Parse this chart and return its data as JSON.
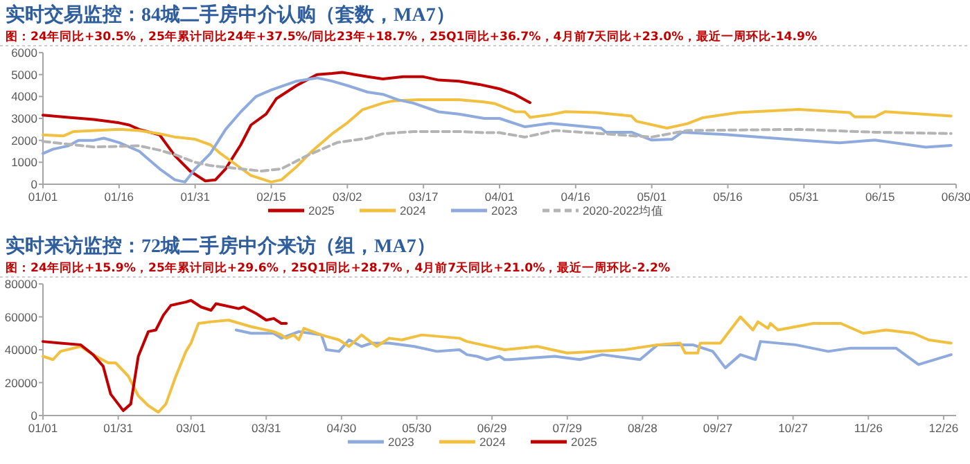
{
  "chart_data": [
    {
      "type": "line",
      "title": "实时交易监控：84城二手房中介认购（套数，MA7）",
      "subtitle": "图：24年同比+30.5%，25年累计同比24年+37.5%/同比23年+18.7%，25Q1同比+36.7%，4月前7天同比+23.0%，最近一周环比-14.9%",
      "xlim": [
        "--01-01",
        "--06-30"
      ],
      "xticks": [
        {
          "value": "--01-01",
          "label": "01/01"
        },
        {
          "value": "--01-16",
          "label": "01/16"
        },
        {
          "value": "--01-31",
          "label": "01/31"
        },
        {
          "value": "--02-15",
          "label": "02/15"
        },
        {
          "value": "--03-02",
          "label": "03/02"
        },
        {
          "value": "--03-17",
          "label": "03/17"
        },
        {
          "value": "--04-01",
          "label": "04/01"
        },
        {
          "value": "--04-16",
          "label": "04/16"
        },
        {
          "value": "--05-01",
          "label": "05/01"
        },
        {
          "value": "--05-16",
          "label": "05/16"
        },
        {
          "value": "--05-31",
          "label": "05/31"
        },
        {
          "value": "--06-15",
          "label": "06/15"
        },
        {
          "value": "--06-30",
          "label": "06/30"
        }
      ],
      "ylim": [
        0,
        6000
      ],
      "yticks": [
        0,
        1000,
        2000,
        3000,
        4000,
        5000,
        6000
      ],
      "legend": "bottom",
      "series": [
        {
          "name": "2025",
          "color": "#c00000",
          "x": [
            "--01-01",
            "--01-06",
            "--01-11",
            "--01-16",
            "--01-18",
            "--01-20",
            "--01-24",
            "--01-27",
            "--01-30",
            "--02-02",
            "--02-04",
            "--02-06",
            "--02-09",
            "--02-11",
            "--02-14",
            "--02-16",
            "--02-20",
            "--02-24",
            "--02-27",
            "--03-01",
            "--03-06",
            "--03-09",
            "--03-13",
            "--03-17",
            "--03-20",
            "--03-24",
            "--03-28",
            "--04-01",
            "--04-04",
            "--04-07"
          ],
          "values": [
            3150,
            3050,
            2950,
            2800,
            2700,
            2500,
            2250,
            1300,
            600,
            150,
            200,
            700,
            1800,
            2700,
            3200,
            3900,
            4500,
            5000,
            5050,
            5100,
            4900,
            4800,
            4900,
            4900,
            4750,
            4700,
            4550,
            4350,
            4100,
            3720
          ]
        },
        {
          "name": "2024",
          "color": "#f2c040",
          "x": [
            "--01-01",
            "--01-05",
            "--01-07",
            "--01-16",
            "--01-20",
            "--01-24",
            "--01-27",
            "--01-31",
            "--02-03",
            "--02-05",
            "--02-08",
            "--02-11",
            "--02-15",
            "--02-17",
            "--02-20",
            "--02-23",
            "--02-27",
            "--03-02",
            "--03-05",
            "--03-09",
            "--03-11",
            "--03-16",
            "--03-24",
            "--03-29",
            "--03-31",
            "--04-04",
            "--04-06",
            "--04-07",
            "--04-11",
            "--04-14",
            "--04-20",
            "--04-27",
            "--04-28",
            "--05-04",
            "--05-08",
            "--05-11",
            "--05-18",
            "--05-30",
            "--06-09",
            "--06-10",
            "--06-14",
            "--06-16",
            "--06-29"
          ],
          "values": [
            2250,
            2200,
            2400,
            2500,
            2450,
            2300,
            2150,
            2050,
            1800,
            1400,
            900,
            400,
            100,
            200,
            800,
            1500,
            2300,
            2800,
            3400,
            3700,
            3800,
            3850,
            3850,
            3750,
            3680,
            3310,
            3300,
            3050,
            3170,
            3310,
            3270,
            3110,
            2870,
            2560,
            2760,
            3030,
            3270,
            3410,
            3270,
            3070,
            3070,
            3310,
            3110
          ]
        },
        {
          "name": "2023",
          "color": "#8faadc",
          "x": [
            "--01-01",
            "--01-03",
            "--01-06",
            "--01-08",
            "--01-11",
            "--01-13",
            "--01-16",
            "--01-20",
            "--01-22",
            "--01-24",
            "--01-27",
            "--01-29",
            "--01-31",
            "--02-03",
            "--02-06",
            "--02-09",
            "--02-12",
            "--02-15",
            "--02-20",
            "--02-24",
            "--02-27",
            "--03-02",
            "--03-06",
            "--03-09",
            "--03-12",
            "--03-15",
            "--03-20",
            "--03-24",
            "--03-29",
            "--04-01",
            "--04-06",
            "--04-11",
            "--04-21",
            "--04-22",
            "--04-27",
            "--05-01",
            "--05-05",
            "--05-07",
            "--05-15",
            "--05-30",
            "--06-07",
            "--06-14",
            "--06-24",
            "--06-29"
          ],
          "values": [
            1400,
            1600,
            1750,
            2000,
            2000,
            2100,
            1900,
            1500,
            1100,
            700,
            200,
            100,
            700,
            1400,
            2500,
            3300,
            4000,
            4300,
            4700,
            4850,
            4700,
            4500,
            4200,
            4100,
            3850,
            3700,
            3300,
            3200,
            3000,
            3000,
            2620,
            2780,
            2560,
            2370,
            2370,
            2010,
            2050,
            2370,
            2270,
            2010,
            1890,
            2010,
            1690,
            1770
          ]
        },
        {
          "name": "2020-2022均值",
          "color": "#b4b4b4",
          "line_style": "dashed",
          "x": [
            "--01-01",
            "--01-11",
            "--01-20",
            "--01-24",
            "--01-27",
            "--01-31",
            "--02-03",
            "--02-07",
            "--02-13",
            "--02-17",
            "--02-22",
            "--02-28",
            "--03-06",
            "--03-09",
            "--03-15",
            "--03-24",
            "--03-29",
            "--04-01",
            "--04-06",
            "--04-12",
            "--05-01",
            "--05-08",
            "--05-30",
            "--06-14",
            "--06-29"
          ],
          "values": [
            1950,
            1700,
            1750,
            1550,
            1350,
            1000,
            850,
            750,
            600,
            700,
            1300,
            1900,
            2100,
            2300,
            2400,
            2400,
            2350,
            2350,
            2150,
            2450,
            2150,
            2450,
            2500,
            2370,
            2310
          ]
        }
      ]
    },
    {
      "type": "line",
      "title": "实时来访监控：72城二手房中介来访（组，MA7）",
      "subtitle": "图：24年同比+15.9%，25年累计同比+29.6%，25Q1同比+28.7%，4月前7天同比+21.0%，最近一周环比-2.2%",
      "xlim": [
        "--01-01",
        "--12-31"
      ],
      "xticks": [
        {
          "value": "--01-01",
          "label": "01/01"
        },
        {
          "value": "--01-31",
          "label": "01/31"
        },
        {
          "value": "--03-01",
          "label": "03/01"
        },
        {
          "value": "--03-31",
          "label": "03/31"
        },
        {
          "value": "--04-30",
          "label": "04/30"
        },
        {
          "value": "--05-30",
          "label": "05/30"
        },
        {
          "value": "--06-29",
          "label": "06/29"
        },
        {
          "value": "--07-29",
          "label": "07/29"
        },
        {
          "value": "--08-28",
          "label": "08/28"
        },
        {
          "value": "--09-27",
          "label": "09/27"
        },
        {
          "value": "--10-27",
          "label": "10/27"
        },
        {
          "value": "--11-26",
          "label": "11/26"
        },
        {
          "value": "--12-26",
          "label": "12/26"
        }
      ],
      "ylim": [
        0,
        80000
      ],
      "yticks": [
        0,
        20000,
        40000,
        60000,
        80000
      ],
      "legend": "bottom",
      "series": [
        {
          "name": "2023",
          "color": "#8faadc",
          "x": [
            "--03-19",
            "--03-25",
            "--04-03",
            "--04-06",
            "--04-13",
            "--04-22",
            "--04-24",
            "--04-29",
            "--05-03",
            "--05-08",
            "--05-12",
            "--05-19",
            "--05-29",
            "--06-07",
            "--06-16",
            "--06-19",
            "--06-23",
            "--06-27",
            "--07-02",
            "--07-04",
            "--07-06",
            "--07-24",
            "--08-03",
            "--08-12",
            "--08-27",
            "--09-03",
            "--09-17",
            "--09-25",
            "--09-30",
            "--10-06",
            "--10-12",
            "--10-14",
            "--10-28",
            "--11-10",
            "--11-19",
            "--12-07",
            "--12-16",
            "--12-29"
          ],
          "values": [
            52000,
            50000,
            50000,
            47000,
            51000,
            49000,
            40000,
            39000,
            46000,
            42000,
            44000,
            44000,
            42000,
            39000,
            40000,
            37000,
            36000,
            34000,
            36000,
            34000,
            34000,
            36000,
            34000,
            37000,
            34000,
            43000,
            43000,
            39000,
            29000,
            37000,
            34000,
            45000,
            43000,
            39000,
            41000,
            41000,
            31000,
            37000
          ]
        },
        {
          "name": "2024",
          "color": "#f2c040",
          "x": [
            "--01-01",
            "--01-05",
            "--01-08",
            "--01-16",
            "--01-21",
            "--01-27",
            "--01-30",
            "--02-04",
            "--02-08",
            "--02-12",
            "--02-16",
            "--02-19",
            "--02-23",
            "--02-27",
            "--03-01",
            "--03-04",
            "--03-09",
            "--03-16",
            "--03-25",
            "--04-03",
            "--04-06",
            "--04-08",
            "--04-11",
            "--04-13",
            "--04-15",
            "--04-22",
            "--04-29",
            "--05-03",
            "--05-08",
            "--05-14",
            "--05-19",
            "--05-24",
            "--06-01",
            "--06-16",
            "--06-19",
            "--06-25",
            "--07-04",
            "--07-17",
            "--07-29",
            "--08-21",
            "--09-03",
            "--09-12",
            "--09-14",
            "--09-19",
            "--09-20",
            "--09-28",
            "--10-06",
            "--10-11",
            "--10-13",
            "--10-17",
            "--10-18",
            "--10-21",
            "--11-04",
            "--11-15",
            "--11-24",
            "--12-03",
            "--12-14",
            "--12-20",
            "--12-29"
          ],
          "values": [
            36000,
            34000,
            39000,
            42000,
            37000,
            32000,
            32000,
            24000,
            12000,
            6000,
            2000,
            7000,
            24000,
            39000,
            44000,
            56000,
            57000,
            58000,
            54000,
            51000,
            49000,
            47000,
            49000,
            46000,
            53000,
            49000,
            46000,
            42000,
            49000,
            42000,
            47000,
            46000,
            49000,
            47000,
            45000,
            43000,
            40000,
            42000,
            38000,
            40000,
            43000,
            44000,
            38000,
            38000,
            44000,
            44000,
            60000,
            52000,
            57000,
            53000,
            56000,
            52000,
            56000,
            56000,
            50000,
            52000,
            50000,
            46000,
            44000
          ]
        },
        {
          "name": "2025",
          "color": "#c00000",
          "x": [
            "--01-01",
            "--01-08",
            "--01-16",
            "--01-21",
            "--01-25",
            "--01-28",
            "--02-02",
            "--02-05",
            "--02-08",
            "--02-12",
            "--02-15",
            "--02-18",
            "--02-21",
            "--02-27",
            "--03-01",
            "--03-05",
            "--03-09",
            "--03-11",
            "--03-20",
            "--03-22",
            "--03-27",
            "--03-31",
            "--04-03",
            "--04-06",
            "--04-08"
          ],
          "values": [
            45000,
            44000,
            43000,
            37000,
            30000,
            13000,
            3000,
            7000,
            36000,
            51000,
            52000,
            61000,
            67000,
            69000,
            70000,
            66000,
            64000,
            68000,
            65000,
            66000,
            62000,
            58000,
            59000,
            56000,
            56000
          ]
        }
      ]
    }
  ]
}
